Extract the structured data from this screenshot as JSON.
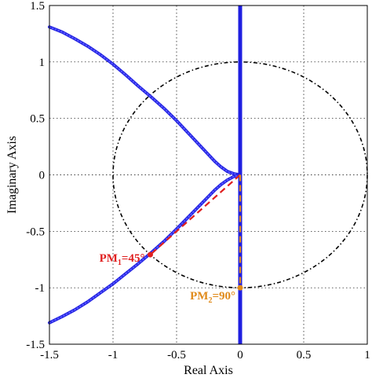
{
  "chart_data": {
    "type": "line",
    "xlabel": "Real Axis",
    "ylabel": "Imaginary Axis",
    "xlim": [
      -1.5,
      1.0
    ],
    "ylim": [
      -1.5,
      1.5
    ],
    "x_ticks": [
      -1.5,
      -1,
      -0.5,
      0,
      0.5,
      1
    ],
    "x_tick_labels": [
      "-1.5",
      "-1",
      "-0.5",
      "0",
      "0.5",
      "1"
    ],
    "y_ticks": [
      -1.5,
      -1,
      -0.5,
      0,
      0.5,
      1,
      1.5
    ],
    "y_tick_labels": [
      "-1.5",
      "-1",
      "-0.5",
      "0",
      "0.5",
      "1",
      "1.5"
    ],
    "grid": true,
    "unit_circle": {
      "center": [
        0,
        0
      ],
      "radius": 1,
      "color": "#000000",
      "style": "dash-dot"
    },
    "series": [
      {
        "color": "#1f1fe0",
        "style": "dotted-thick",
        "x": [
          -1.5,
          -1.4,
          -1.3,
          -1.2,
          -1.1,
          -1.0,
          -0.9,
          -0.8,
          -0.7,
          -0.6,
          -0.5,
          -0.4,
          -0.3,
          -0.2,
          -0.15,
          -0.1,
          -0.05,
          0.0
        ],
        "y": [
          1.31,
          1.265,
          1.205,
          1.14,
          1.065,
          0.98,
          0.885,
          0.785,
          0.69,
          0.59,
          0.48,
          0.36,
          0.24,
          0.12,
          0.07,
          0.03,
          0.01,
          0.0
        ]
      },
      {
        "color": "#1f1fe0",
        "style": "dotted-thick",
        "x": [
          -1.5,
          -1.4,
          -1.3,
          -1.2,
          -1.1,
          -1.0,
          -0.9,
          -0.8,
          -0.7,
          -0.6,
          -0.5,
          -0.4,
          -0.3,
          -0.2,
          -0.15,
          -0.1,
          -0.05,
          0.0
        ],
        "y": [
          -1.31,
          -1.255,
          -1.195,
          -1.125,
          -1.045,
          -0.965,
          -0.875,
          -0.785,
          -0.69,
          -0.59,
          -0.48,
          -0.365,
          -0.25,
          -0.135,
          -0.085,
          -0.045,
          -0.015,
          0.0
        ]
      },
      {
        "color": "#1f1fe0",
        "style": "solid-thick",
        "x": [
          0,
          0
        ],
        "y": [
          -1.5,
          1.5
        ]
      }
    ],
    "pm_lines": [
      {
        "color": "#e02020",
        "x": [
          0,
          -0.707
        ],
        "y": [
          0,
          -0.707
        ]
      },
      {
        "color": "#e08a1a",
        "x": [
          0,
          0
        ],
        "y": [
          0,
          -1.0
        ]
      }
    ],
    "annotations": [
      {
        "label_main": "PM",
        "label_sub": "1",
        "label_tail": "=45°",
        "x": -0.707,
        "y": -0.707,
        "color": "#e02020"
      },
      {
        "label_main": "PM",
        "label_sub": "2",
        "label_tail": "=90°",
        "x": 0.0,
        "y": -1.0,
        "color": "#e08a1a"
      }
    ]
  }
}
